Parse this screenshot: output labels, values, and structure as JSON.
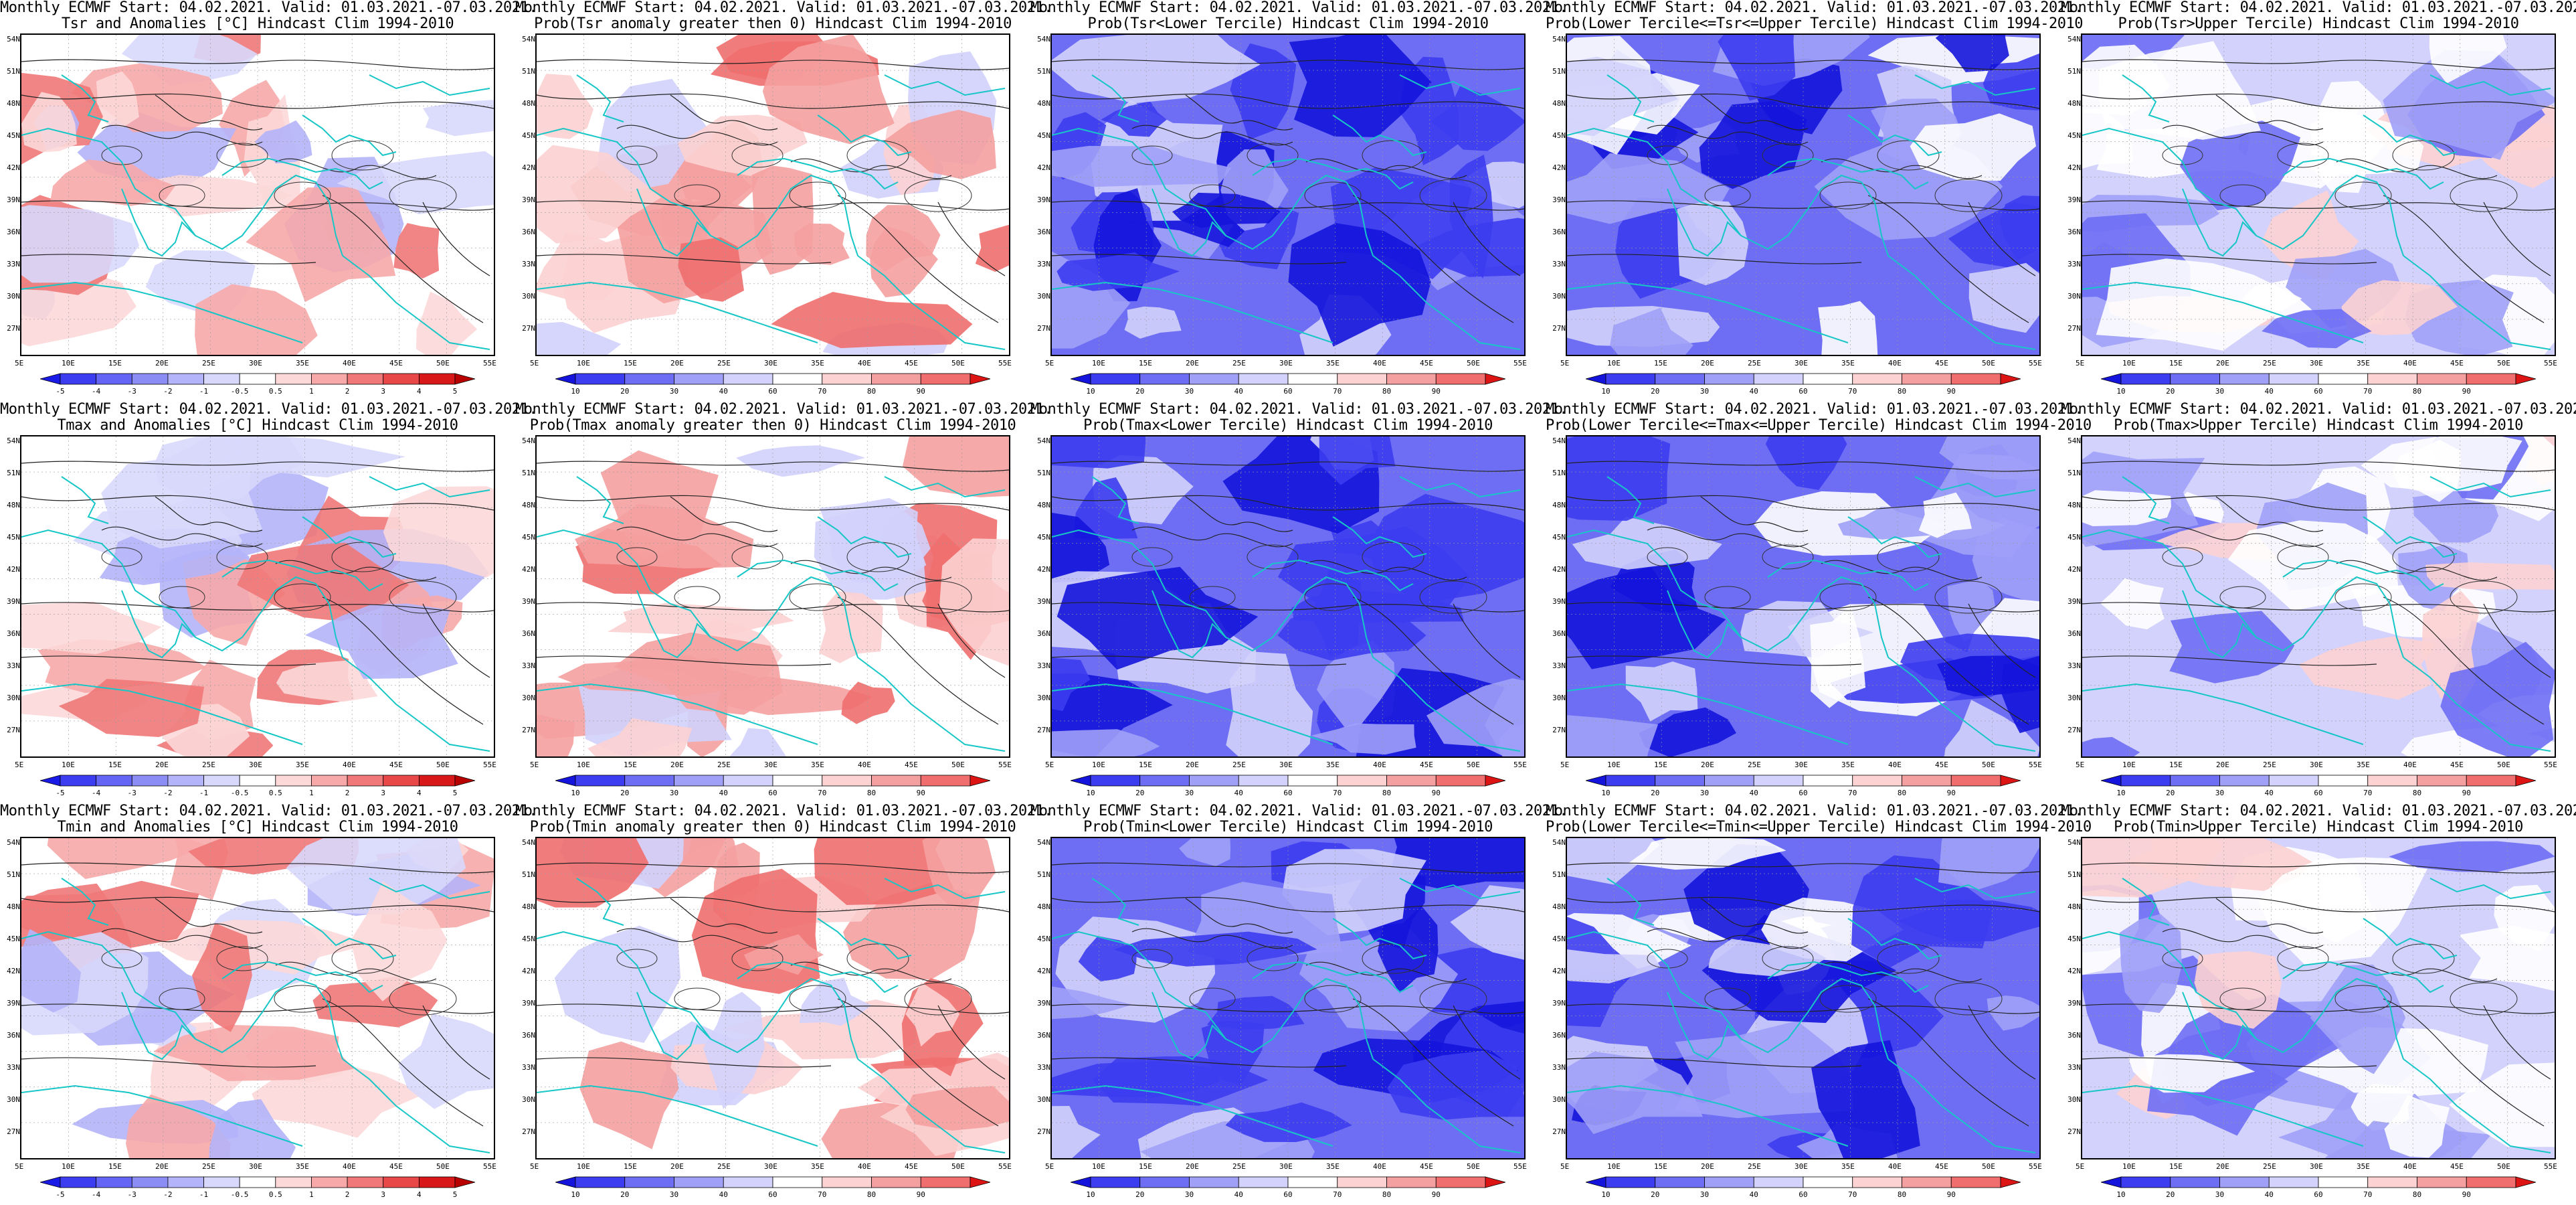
{
  "figure": {
    "title_line1": "Monthly ECMWF Start: 04.02.2021. Valid: 01.03.2021.-07.03.2021.",
    "lat_labels": [
      "54N",
      "51N",
      "48N",
      "45N",
      "42N",
      "39N",
      "36N",
      "33N",
      "30N",
      "27N"
    ],
    "lon_labels": [
      "5E",
      "10E",
      "15E",
      "20E",
      "25E",
      "30E",
      "35E",
      "40E",
      "45E",
      "50E",
      "55E"
    ]
  },
  "colorbars": {
    "anomaly": {
      "labels": [
        "-5",
        "-4",
        "-3",
        "-2",
        "-1",
        "-0.5",
        "0.5",
        "1",
        "2",
        "3",
        "4",
        "5"
      ],
      "colors": [
        "#1a1ae6",
        "#3c3cf0",
        "#6464f5",
        "#8c8cf5",
        "#b4b4fa",
        "#d8d8fc",
        "#ffffff",
        "#fcd8d8",
        "#f7a8a8",
        "#f07878",
        "#e84848",
        "#d81818",
        "#b80000"
      ]
    },
    "probability": {
      "labels": [
        "10",
        "20",
        "30",
        "40",
        "60",
        "70",
        "80",
        "90"
      ],
      "colors": [
        "#1414dc",
        "#3c3cf0",
        "#6e6ef5",
        "#a0a0f8",
        "#d2d2fc",
        "#ffffff",
        "#fcd2d2",
        "#f5a0a0",
        "#f06e6e",
        "#dc1414"
      ]
    }
  },
  "rows": [
    {
      "variable": "Tsr",
      "panels": [
        {
          "title_line2": "Tsr and Anomalies [°C] Hindcast Clim 1994-2010",
          "colorbar": "anomaly",
          "pattern": "anom"
        },
        {
          "title_line2": "Prob(Tsr anomaly greater then 0) Hindcast Clim 1994-2010",
          "colorbar": "probability",
          "pattern": "probgt"
        },
        {
          "title_line2": "Prob(Tsr<Lower Tercile) Hindcast Clim 1994-2010",
          "colorbar": "probability",
          "pattern": "lower"
        },
        {
          "title_line2": "Prob(Lower Tercile<=Tsr<=Upper Tercile) Hindcast Clim 1994-2010",
          "colorbar": "probability",
          "pattern": "middle"
        },
        {
          "title_line2": "Prob(Tsr>Upper Tercile) Hindcast Clim 1994-2010",
          "colorbar": "probability",
          "pattern": "upper"
        }
      ]
    },
    {
      "variable": "Tmax",
      "panels": [
        {
          "title_line2": "Tmax and Anomalies [°C] Hindcast Clim 1994-2010",
          "colorbar": "anomaly",
          "pattern": "anom"
        },
        {
          "title_line2": "Prob(Tmax anomaly greater then 0) Hindcast Clim 1994-2010",
          "colorbar": "probability",
          "pattern": "probgt"
        },
        {
          "title_line2": "Prob(Tmax<Lower Tercile) Hindcast Clim 1994-2010",
          "colorbar": "probability",
          "pattern": "lower"
        },
        {
          "title_line2": "Prob(Lower Tercile<=Tmax<=Upper Tercile) Hindcast Clim 1994-2010",
          "colorbar": "probability",
          "pattern": "middle"
        },
        {
          "title_line2": "Prob(Tmax>Upper Tercile) Hindcast Clim 1994-2010",
          "colorbar": "probability",
          "pattern": "upper"
        }
      ]
    },
    {
      "variable": "Tmin",
      "panels": [
        {
          "title_line2": "Tmin and Anomalies [°C] Hindcast Clim 1994-2010",
          "colorbar": "anomaly",
          "pattern": "anom"
        },
        {
          "title_line2": "Prob(Tmin anomaly greater then 0) Hindcast Clim 1994-2010",
          "colorbar": "probability",
          "pattern": "probgt"
        },
        {
          "title_line2": "Prob(Tmin<Lower Tercile) Hindcast Clim 1994-2010",
          "colorbar": "probability",
          "pattern": "lower"
        },
        {
          "title_line2": "Prob(Lower Tercile<=Tmin<=Upper Tercile) Hindcast Clim 1994-2010",
          "colorbar": "probability",
          "pattern": "middle"
        },
        {
          "title_line2": "Prob(Tmin>Upper Tercile) Hindcast Clim 1994-2010",
          "colorbar": "probability",
          "pattern": "upper"
        }
      ]
    }
  ]
}
